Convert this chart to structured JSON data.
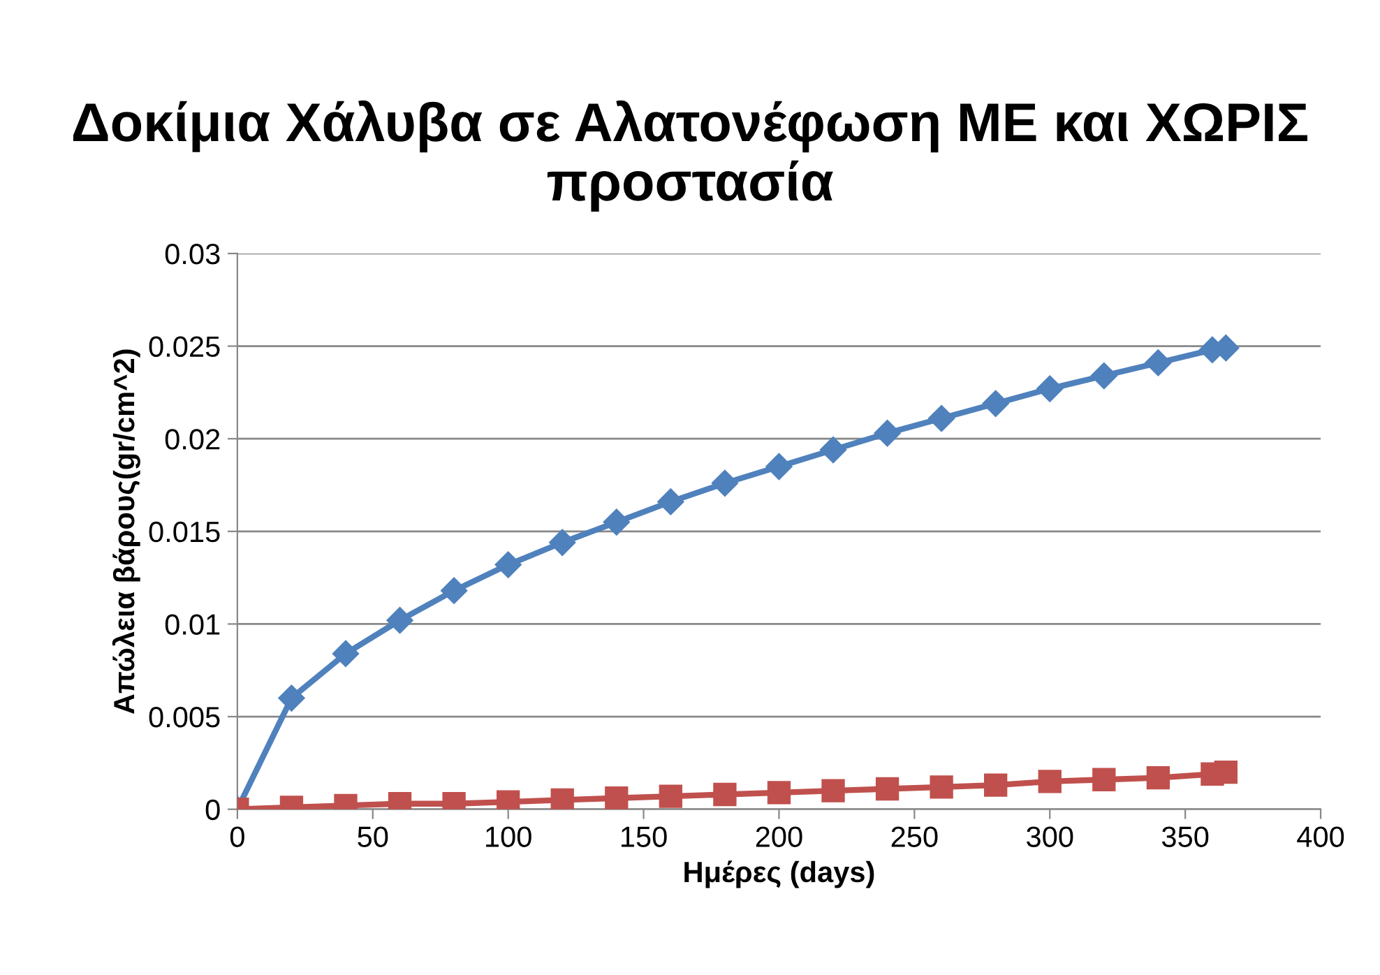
{
  "chart_data": {
    "type": "line",
    "title": "Δοκίμια Χάλυβα σε Αλατονέφωση ΜΕ και ΧΩΡΙΣ προστασία",
    "xlabel": "Ημέρες (days)",
    "ylabel": "Απώλεια βάρους(gr/cm^2)",
    "x": [
      0,
      20,
      40,
      60,
      80,
      100,
      120,
      140,
      160,
      180,
      200,
      220,
      240,
      260,
      280,
      300,
      320,
      340,
      360,
      365
    ],
    "series": [
      {
        "color": "#4f81bd",
        "marker": "diamond",
        "values": [
          0,
          0.006,
          0.0084,
          0.0102,
          0.0118,
          0.0132,
          0.0144,
          0.0155,
          0.0166,
          0.0176,
          0.0185,
          0.0194,
          0.0203,
          0.0211,
          0.0219,
          0.0227,
          0.0234,
          0.0241,
          0.0248,
          0.0249
        ]
      },
      {
        "color": "#c0504d",
        "marker": "square",
        "values": [
          0,
          0.0001,
          0.0002,
          0.0003,
          0.0003,
          0.0004,
          0.0005,
          0.0006,
          0.0007,
          0.0008,
          0.0009,
          0.001,
          0.0011,
          0.0012,
          0.0013,
          0.0015,
          0.0016,
          0.0017,
          0.0019,
          0.002
        ]
      }
    ],
    "xlim": [
      0,
      400
    ],
    "xticks": [
      0,
      50,
      100,
      150,
      200,
      250,
      300,
      350,
      400
    ],
    "ylim": [
      0,
      0.03
    ],
    "yticks": [
      0,
      0.005,
      0.01,
      0.015,
      0.02,
      0.025,
      0.03
    ],
    "grid": "y",
    "legend": false,
    "line_style": "solid"
  }
}
